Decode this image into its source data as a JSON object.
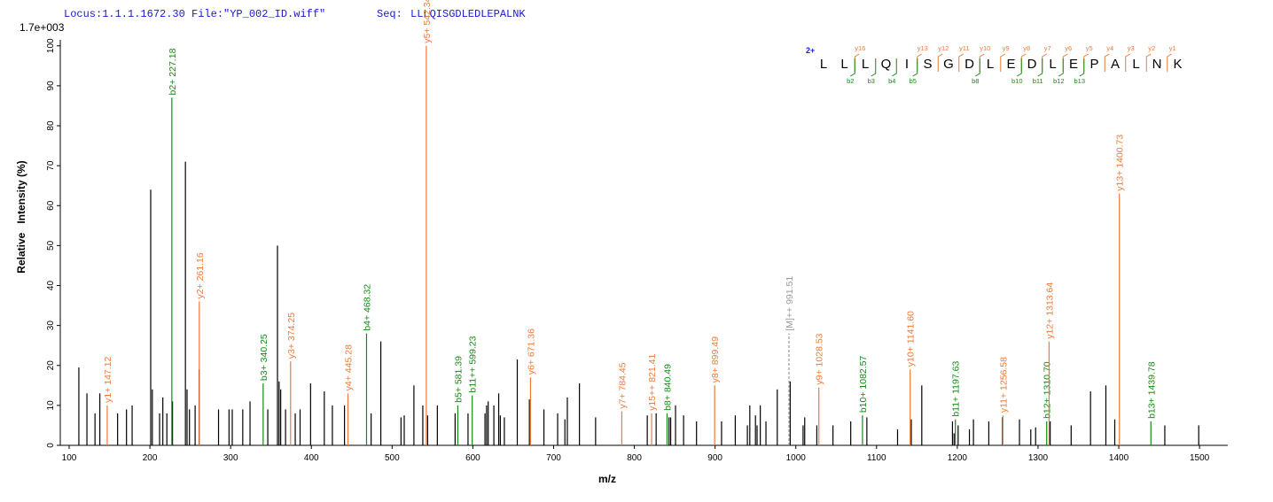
{
  "header": {
    "locus": "Locus:1.1.1.1672.30 File:\"YP_002_ID.wiff\"",
    "seq_label": "Seq:",
    "sequence": "LLLQISGDLEDLEPALNK"
  },
  "chart_data": {
    "type": "spectrum",
    "scale_label": "1.7e+003",
    "y_label": "Relative   Intensity (%)",
    "x_label": "m/z",
    "xlim": [
      89,
      1535
    ],
    "ylim": [
      0,
      101.5
    ],
    "xticks": [
      100,
      200,
      300,
      400,
      500,
      600,
      700,
      800,
      900,
      1000,
      1100,
      1200,
      1300,
      1400,
      1500
    ],
    "yticks": [
      0,
      10,
      20,
      30,
      40,
      50,
      60,
      70,
      80,
      90,
      100
    ],
    "color": "#000000",
    "x": [
      112,
      122,
      132,
      138,
      160,
      171,
      178,
      201,
      203,
      212,
      216,
      221,
      228,
      244,
      246,
      249,
      256,
      261,
      285,
      298,
      302,
      315,
      324,
      346,
      358,
      360,
      362,
      368,
      380,
      386,
      399,
      416,
      426,
      441,
      474,
      486,
      511,
      515,
      527,
      538,
      544,
      556,
      578,
      594,
      615,
      617,
      619,
      626,
      632,
      634,
      639,
      655,
      670,
      688,
      705,
      714,
      717,
      732,
      752,
      816,
      827,
      843,
      845,
      851,
      861,
      877,
      908,
      925,
      940,
      943,
      950,
      952,
      956,
      963,
      977,
      993,
      1009,
      1011,
      1026,
      1046,
      1068,
      1088,
      1126,
      1143,
      1156,
      1194,
      1196,
      1201,
      1215,
      1220,
      1239,
      1256,
      1277,
      1291,
      1297,
      1315,
      1341,
      1365,
      1384,
      1395,
      1457,
      1499
    ],
    "values": [
      19.5,
      13,
      8,
      13,
      8,
      9,
      10,
      64,
      14,
      8,
      12,
      8,
      11,
      71,
      14,
      9,
      10,
      19,
      9,
      9,
      9,
      9,
      11,
      9,
      50,
      16,
      14,
      9,
      8,
      9,
      15.5,
      13.5,
      10,
      10,
      8,
      26,
      7,
      7.5,
      15,
      10,
      7.5,
      10,
      8,
      8,
      8,
      10,
      11,
      10,
      13,
      7.5,
      7,
      21.5,
      11.5,
      9,
      8,
      6.5,
      12,
      15.5,
      7,
      7.5,
      8,
      7,
      7,
      10,
      7.5,
      6,
      6,
      7.5,
      5,
      10,
      7.5,
      5,
      10,
      6,
      14,
      16,
      5,
      7,
      5,
      5,
      6,
      7,
      4,
      6.5,
      15,
      6,
      3,
      5,
      4,
      6.5,
      6,
      7,
      6.5,
      4,
      4.5,
      6,
      5,
      13.5,
      15,
      6.5,
      5,
      5
    ],
    "annotations": [
      {
        "x": 147.12,
        "value": 10,
        "label": "y1+ 147.12",
        "color": "#ef7a3a"
      },
      {
        "x": 227.18,
        "value": 87,
        "label": "b2+ 227.18",
        "color": "#138a13"
      },
      {
        "x": 261.16,
        "value": 36,
        "label": "y2+ 261.16",
        "color": "#ef7a3a"
      },
      {
        "x": 340.25,
        "value": 15.5,
        "label": "b3+ 340.25",
        "color": "#138a13"
      },
      {
        "x": 374.25,
        "value": 21,
        "label": "y3+ 374.25",
        "color": "#ef7a3a"
      },
      {
        "x": 445.28,
        "value": 13,
        "label": "y4+ 445.28",
        "color": "#ef7a3a"
      },
      {
        "x": 468.32,
        "value": 28,
        "label": "b4+ 468.32",
        "color": "#138a13"
      },
      {
        "x": 542.34,
        "value": 100,
        "label": "y5+ 542.34",
        "color": "#ef7a3a"
      },
      {
        "x": 581.39,
        "value": 10,
        "label": "b5+ 581.39",
        "color": "#138a13"
      },
      {
        "x": 599.23,
        "value": 12.5,
        "label": "b11++ 599.23",
        "color": "#138a13"
      },
      {
        "x": 671.36,
        "value": 17,
        "label": "y6+ 671.36",
        "color": "#ef7a3a"
      },
      {
        "x": 784.45,
        "value": 8.5,
        "label": "y7+ 784.45",
        "color": "#ef7a3a"
      },
      {
        "x": 821.41,
        "value": 8,
        "label": "y15++ 821.41",
        "color": "#ef7a3a"
      },
      {
        "x": 840.49,
        "value": 8,
        "label": "b8+ 840.49",
        "color": "#138a13"
      },
      {
        "x": 899.49,
        "value": 15,
        "label": "y8+ 899.49",
        "color": "#ef7a3a"
      },
      {
        "x": 991.51,
        "value": 28,
        "label": "[M]++ 991.51",
        "color": "#999999",
        "dashed": true
      },
      {
        "x": 1028.53,
        "value": 14.5,
        "label": "y9+ 1028.53",
        "color": "#ef7a3a"
      },
      {
        "x": 1082.57,
        "value": 7.5,
        "label": "b10+ 1082.57",
        "color": "#138a13"
      },
      {
        "x": 1141.6,
        "value": 19,
        "label": "y10+ 1141.60",
        "color": "#ef7a3a"
      },
      {
        "x": 1197.63,
        "value": 6.5,
        "label": "b11+ 1197.63",
        "color": "#138a13"
      },
      {
        "x": 1256.58,
        "value": 7.5,
        "label": "y11+ 1256.58",
        "color": "#ef7a3a"
      },
      {
        "x": 1310.7,
        "value": 6,
        "label": "b12+ 1310.70",
        "color": "#138a13"
      },
      {
        "x": 1313.64,
        "value": 26,
        "label": "y12+ 1313.64",
        "color": "#ef7a3a"
      },
      {
        "x": 1400.73,
        "value": 63,
        "label": "y13+ 1400.73",
        "color": "#ef7a3a"
      },
      {
        "x": 1439.78,
        "value": 6,
        "label": "b13+ 1439.78",
        "color": "#138a13"
      }
    ],
    "sequence_map": {
      "charge": "2+",
      "residues": [
        "L",
        "L",
        "L",
        "Q",
        "I",
        "S",
        "G",
        "D",
        "L",
        "E",
        "D",
        "L",
        "E",
        "P",
        "A",
        "L",
        "N",
        "K"
      ],
      "y_ions": [
        "y16",
        "y13",
        "y12",
        "y11",
        "y10",
        "y9",
        "y8",
        "y7",
        "y6",
        "y5",
        "y4",
        "y3",
        "y2",
        "y1"
      ],
      "b_ions": [
        "b2",
        "b3",
        "b4",
        "b5",
        "b8",
        "b10",
        "b11",
        "b12",
        "b13"
      ]
    }
  }
}
